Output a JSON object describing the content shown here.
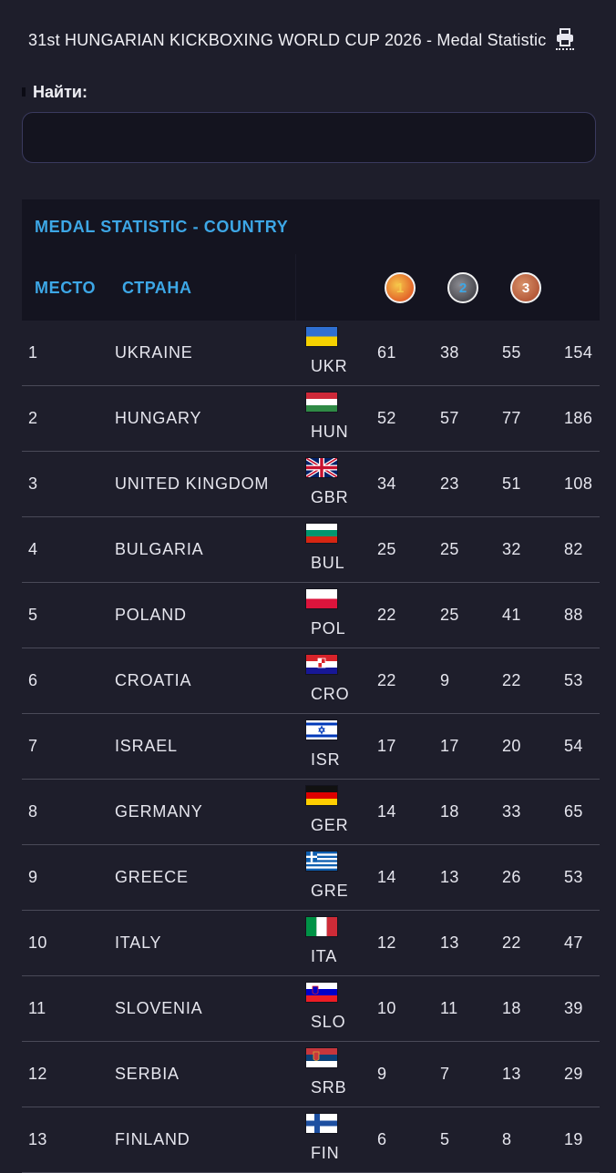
{
  "header": {
    "title": "31st HUNGARIAN KICKBOXING WORLD CUP 2026 - Medal Statistic",
    "print_icon": "printer-icon"
  },
  "search": {
    "label": "Найти:",
    "value": "",
    "placeholder": ""
  },
  "table": {
    "title": "MEDAL STATISTIC - COUNTRY",
    "col_place": "МЕСТО",
    "col_country": "СТРАНА",
    "medals": {
      "gold": "1",
      "silver": "2",
      "bronze": "3"
    },
    "rows": [
      {
        "place": "1",
        "country": "UKRAINE",
        "code": "UKR",
        "flag": "ukr",
        "gold": "61",
        "silver": "38",
        "bronze": "55",
        "total": "154"
      },
      {
        "place": "2",
        "country": "HUNGARY",
        "code": "HUN",
        "flag": "hun",
        "gold": "52",
        "silver": "57",
        "bronze": "77",
        "total": "186"
      },
      {
        "place": "3",
        "country": "UNITED KINGDOM",
        "code": "GBR",
        "flag": "gbr",
        "gold": "34",
        "silver": "23",
        "bronze": "51",
        "total": "108"
      },
      {
        "place": "4",
        "country": "BULGARIA",
        "code": "BUL",
        "flag": "bul",
        "gold": "25",
        "silver": "25",
        "bronze": "32",
        "total": "82"
      },
      {
        "place": "5",
        "country": "POLAND",
        "code": "POL",
        "flag": "pol",
        "gold": "22",
        "silver": "25",
        "bronze": "41",
        "total": "88"
      },
      {
        "place": "6",
        "country": "CROATIA",
        "code": "CRO",
        "flag": "cro",
        "gold": "22",
        "silver": "9",
        "bronze": "22",
        "total": "53"
      },
      {
        "place": "7",
        "country": "ISRAEL",
        "code": "ISR",
        "flag": "isr",
        "gold": "17",
        "silver": "17",
        "bronze": "20",
        "total": "54"
      },
      {
        "place": "8",
        "country": "GERMANY",
        "code": "GER",
        "flag": "ger",
        "gold": "14",
        "silver": "18",
        "bronze": "33",
        "total": "65"
      },
      {
        "place": "9",
        "country": "GREECE",
        "code": "GRE",
        "flag": "gre",
        "gold": "14",
        "silver": "13",
        "bronze": "26",
        "total": "53"
      },
      {
        "place": "10",
        "country": "ITALY",
        "code": "ITA",
        "flag": "ita",
        "gold": "12",
        "silver": "13",
        "bronze": "22",
        "total": "47"
      },
      {
        "place": "11",
        "country": "SLOVENIA",
        "code": "SLO",
        "flag": "slo",
        "gold": "10",
        "silver": "11",
        "bronze": "18",
        "total": "39"
      },
      {
        "place": "12",
        "country": "SERBIA",
        "code": "SRB",
        "flag": "srb",
        "gold": "9",
        "silver": "7",
        "bronze": "13",
        "total": "29"
      },
      {
        "place": "13",
        "country": "FINLAND",
        "code": "FIN",
        "flag": "fin",
        "gold": "6",
        "silver": "5",
        "bronze": "8",
        "total": "19"
      }
    ]
  },
  "colors": {
    "background": "#1e1e2b",
    "header_bg": "#141420",
    "accent": "#3da7e6"
  }
}
